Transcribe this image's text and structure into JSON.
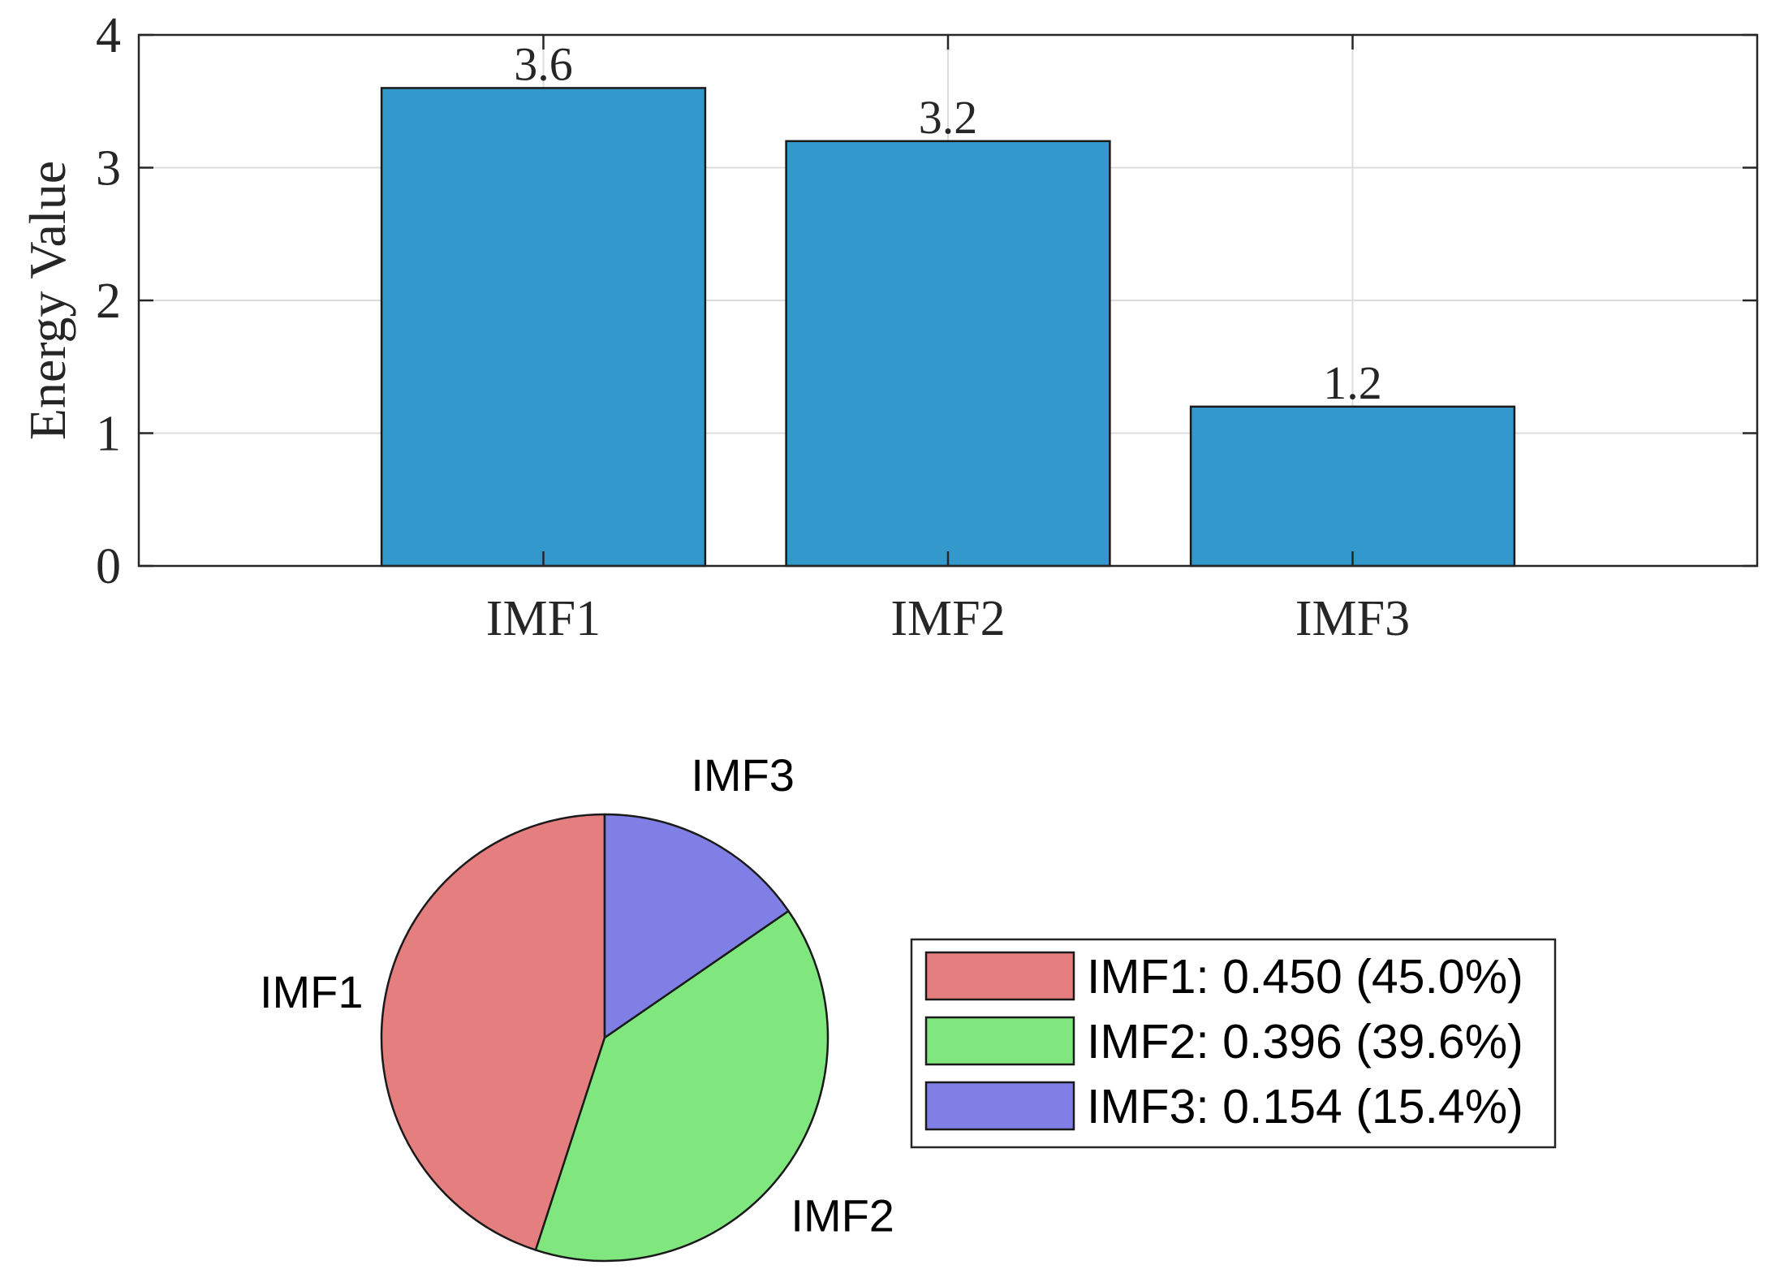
{
  "chart_data": [
    {
      "type": "bar",
      "categories": [
        "IMF1",
        "IMF2",
        "IMF3"
      ],
      "values": [
        3.6,
        3.2,
        1.2
      ],
      "data_labels": [
        "3.6",
        "3.2",
        "1.2"
      ],
      "ylabel": "Energy Value",
      "ylim": [
        0,
        4
      ],
      "yticks": [
        "0",
        "1",
        "2",
        "3",
        "4"
      ],
      "grid": true,
      "bar_color": "#3398CC"
    },
    {
      "type": "pie",
      "labels": [
        "IMF1",
        "IMF2",
        "IMF3"
      ],
      "values": [
        0.45,
        0.396,
        0.154
      ],
      "colors": [
        "#E57E7E",
        "#80E67E",
        "#7F7FE5"
      ],
      "legend": {
        "placement": "right",
        "entries": [
          "IMF1: 0.450 (45.0%)",
          "IMF2: 0.396 (39.6%)",
          "IMF3: 0.154 (15.4%)"
        ]
      }
    }
  ]
}
